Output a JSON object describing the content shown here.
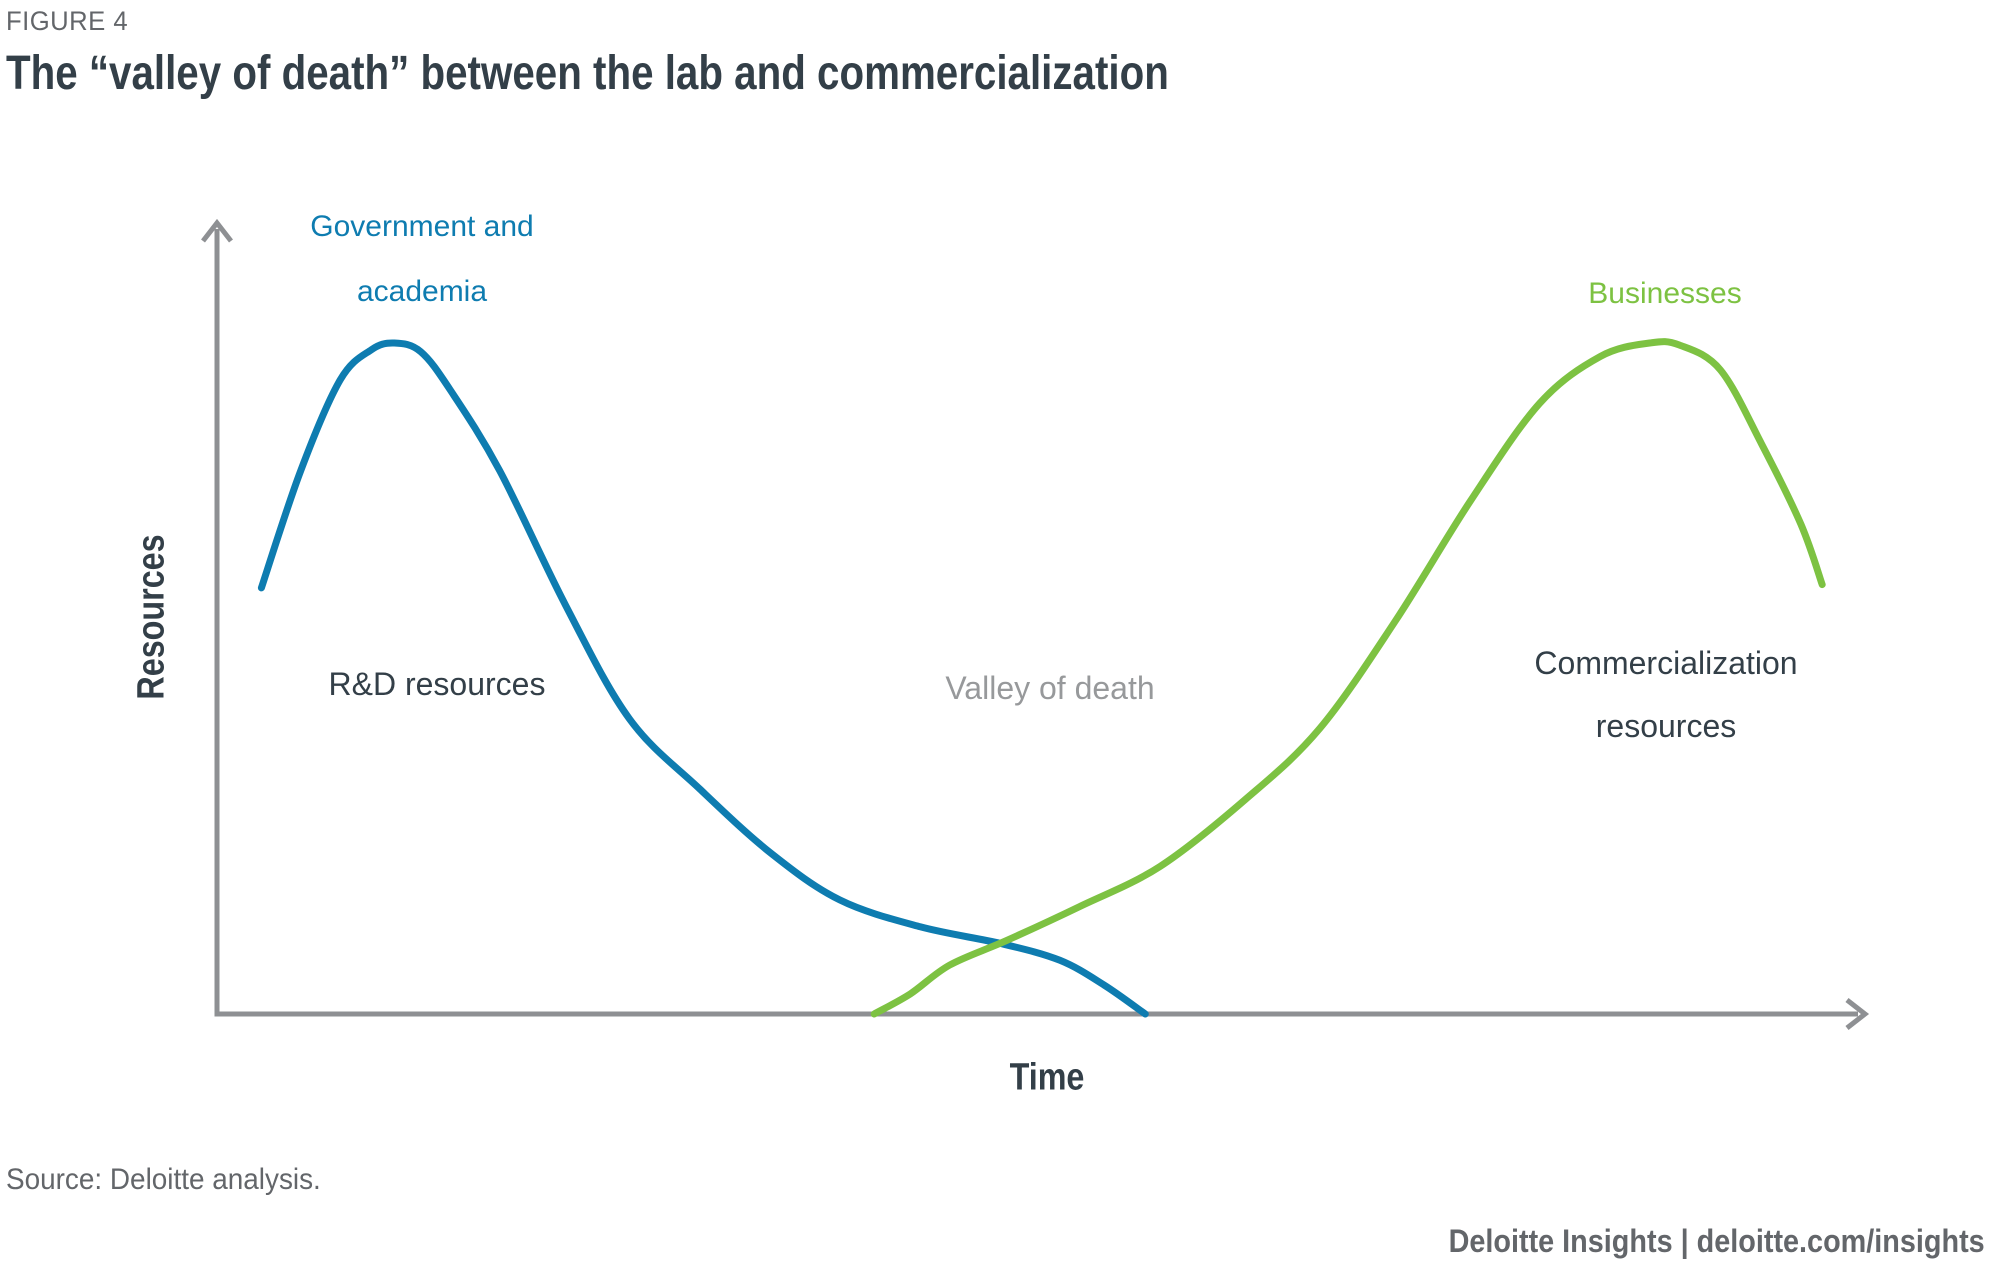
{
  "header": {
    "figure_label": "FIGURE 4",
    "title": "The “valley of death” between the lab and commercialization"
  },
  "chart": {
    "y_axis_label": "Resources",
    "x_axis_label": "Time",
    "curve_labels": {
      "government_academia_line1": "Government and",
      "government_academia_line2": "academia",
      "businesses": "Businesses"
    },
    "annotations": {
      "rnd": "R&D resources",
      "valley": "Valley of death",
      "commercialization_line1": "Commercialization",
      "commercialization_line2": "resources"
    }
  },
  "chart_data": {
    "type": "line",
    "title": "The “valley of death” between the lab and commercialization",
    "xlabel": "Time",
    "ylabel": "Resources",
    "x_range": [
      0,
      100
    ],
    "y_range": [
      0,
      100
    ],
    "grid": false,
    "legend_position": "inline-curve-labels",
    "axes_style": "conceptual arrows, no tick marks or numeric scale",
    "series": [
      {
        "name": "Government and academia",
        "annotation": "R&D resources",
        "color": "#0E7CB0",
        "points": [
          [
            2.7,
            63.5
          ],
          [
            5.1,
            81
          ],
          [
            7.5,
            94.5
          ],
          [
            9.4,
            99
          ],
          [
            10.8,
            100
          ],
          [
            12.4,
            98.7
          ],
          [
            14.2,
            93
          ],
          [
            17.2,
            81
          ],
          [
            21.2,
            61
          ],
          [
            25.1,
            44
          ],
          [
            29.4,
            33.5
          ],
          [
            33.7,
            24
          ],
          [
            37.9,
            17
          ],
          [
            42.8,
            13
          ],
          [
            47.7,
            10.5
          ],
          [
            51.3,
            8
          ],
          [
            54,
            4.3
          ],
          [
            56.5,
            0
          ]
        ]
      },
      {
        "name": "Businesses",
        "annotation": "Commercialization resources",
        "color": "#7DC242",
        "points": [
          [
            40,
            0
          ],
          [
            42.2,
            3
          ],
          [
            44.6,
            7.3
          ],
          [
            48.1,
            11
          ],
          [
            52.5,
            16
          ],
          [
            57.4,
            22
          ],
          [
            62.6,
            32
          ],
          [
            67.1,
            42.5
          ],
          [
            71.7,
            58.5
          ],
          [
            76.3,
            76.5
          ],
          [
            80.5,
            91
          ],
          [
            84.2,
            98
          ],
          [
            87.2,
            100
          ],
          [
            89,
            99.7
          ],
          [
            91.5,
            96
          ],
          [
            94,
            85
          ],
          [
            96.4,
            73
          ],
          [
            97.7,
            64
          ]
        ]
      }
    ],
    "annotations": [
      {
        "text": "Valley of death",
        "x": 51,
        "y": 47
      },
      {
        "text": "R&D resources",
        "x": 13,
        "y": 48
      },
      {
        "text": "Commercialization resources",
        "x": 88,
        "y": 51
      }
    ],
    "curves_cross_at": {
      "x": 48.1,
      "y": 11
    }
  },
  "footer": {
    "source": "Source: Deloitte analysis.",
    "branding": "Deloitte Insights | deloitte.com/insights"
  },
  "colors": {
    "blue": "#0E7CB0",
    "green": "#7DC242",
    "axis_gray": "#8E9093",
    "dark_text": "#333F48",
    "muted_text": "#63666A",
    "valley_text": "#97999B"
  }
}
